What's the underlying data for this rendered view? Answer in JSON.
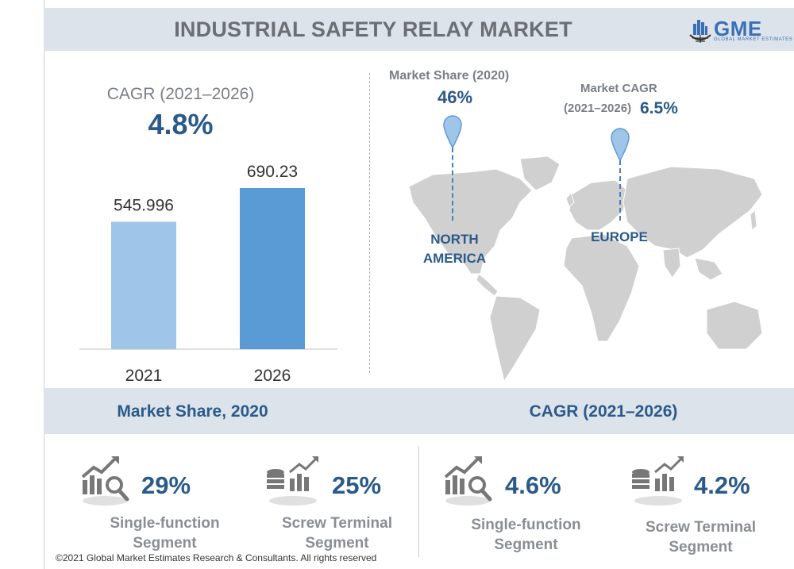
{
  "header": {
    "title": "INDUSTRIAL SAFETY RELAY MARKET",
    "logo_text": "GME",
    "logo_sub": "GLOBAL MARKET ESTIMATES"
  },
  "cagr": {
    "label": "CAGR (2021–2026)",
    "value": "4.8%"
  },
  "chart_data": {
    "type": "bar",
    "categories": [
      "2021",
      "2026"
    ],
    "values": [
      545.996,
      690.23
    ],
    "data_labels": [
      "545.996",
      "690.23"
    ],
    "colors": [
      "#9fc5e8",
      "#5b9bd5"
    ],
    "grid": false
  },
  "map": {
    "market_share_label": "Market Share (2020)",
    "market_share_value": "46%",
    "market_share_region_lines": [
      "NORTH",
      "AMERICA"
    ],
    "market_cagr_label_line1": "Market CAGR",
    "market_cagr_label_line2": "(2021–2026)",
    "market_cagr_value": "6.5%",
    "market_cagr_region": "EUROPE",
    "pin_icon": "map-pin-icon",
    "pin_color": "#9fc5e8"
  },
  "bottom": {
    "left_title": "Market Share, 2020",
    "right_title": "CAGR (2021–2026)",
    "stats": [
      {
        "value": "29%",
        "segment": [
          "Single-function",
          "Segment"
        ],
        "icon": "chart-magnifier-icon"
      },
      {
        "value": "25%",
        "segment": [
          "Screw Terminal",
          "Segment"
        ],
        "icon": "coins-chart-icon"
      },
      {
        "value": "4.6%",
        "segment": [
          "Single-function",
          "Segment"
        ],
        "icon": "chart-magnifier-icon"
      },
      {
        "value": "4.2%",
        "segment": [
          "Screw Terminal",
          "Segment"
        ],
        "icon": "coins-chart-icon"
      }
    ]
  },
  "footer": {
    "copyright": "©2021 Global Market Estimates Research & Consultants. All rights reserved"
  }
}
